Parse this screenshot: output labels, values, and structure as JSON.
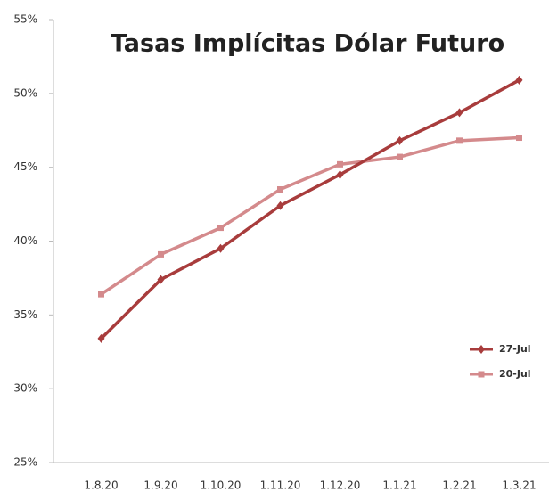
{
  "chart_data": {
    "type": "line",
    "title": "Tasas Implícitas Dólar Futuro",
    "categories": [
      "1.8.20",
      "1.9.20",
      "1.10.20",
      "1.11.20",
      "1.12.20",
      "1.1.21",
      "1.2.21",
      "1.3.21"
    ],
    "series": [
      {
        "name": "27-Jul",
        "color": "#a83c3c",
        "marker": "diamond",
        "values": [
          33.4,
          37.4,
          39.5,
          42.4,
          44.5,
          46.8,
          48.7,
          50.9
        ]
      },
      {
        "name": "20-Jul",
        "color": "#d48a8c",
        "marker": "square",
        "values": [
          36.4,
          39.1,
          40.9,
          43.5,
          45.2,
          45.7,
          46.8,
          47.0
        ]
      }
    ],
    "ylim": [
      25,
      55
    ],
    "yticks": [
      {
        "value": 25,
        "label": "25%"
      },
      {
        "value": 30,
        "label": "30%"
      },
      {
        "value": 35,
        "label": "35%"
      },
      {
        "value": 40,
        "label": "40%"
      },
      {
        "value": 45,
        "label": "45%"
      },
      {
        "value": 50,
        "label": "50%"
      },
      {
        "value": 55,
        "label": "55%"
      }
    ],
    "grid": false,
    "legend": "right"
  }
}
